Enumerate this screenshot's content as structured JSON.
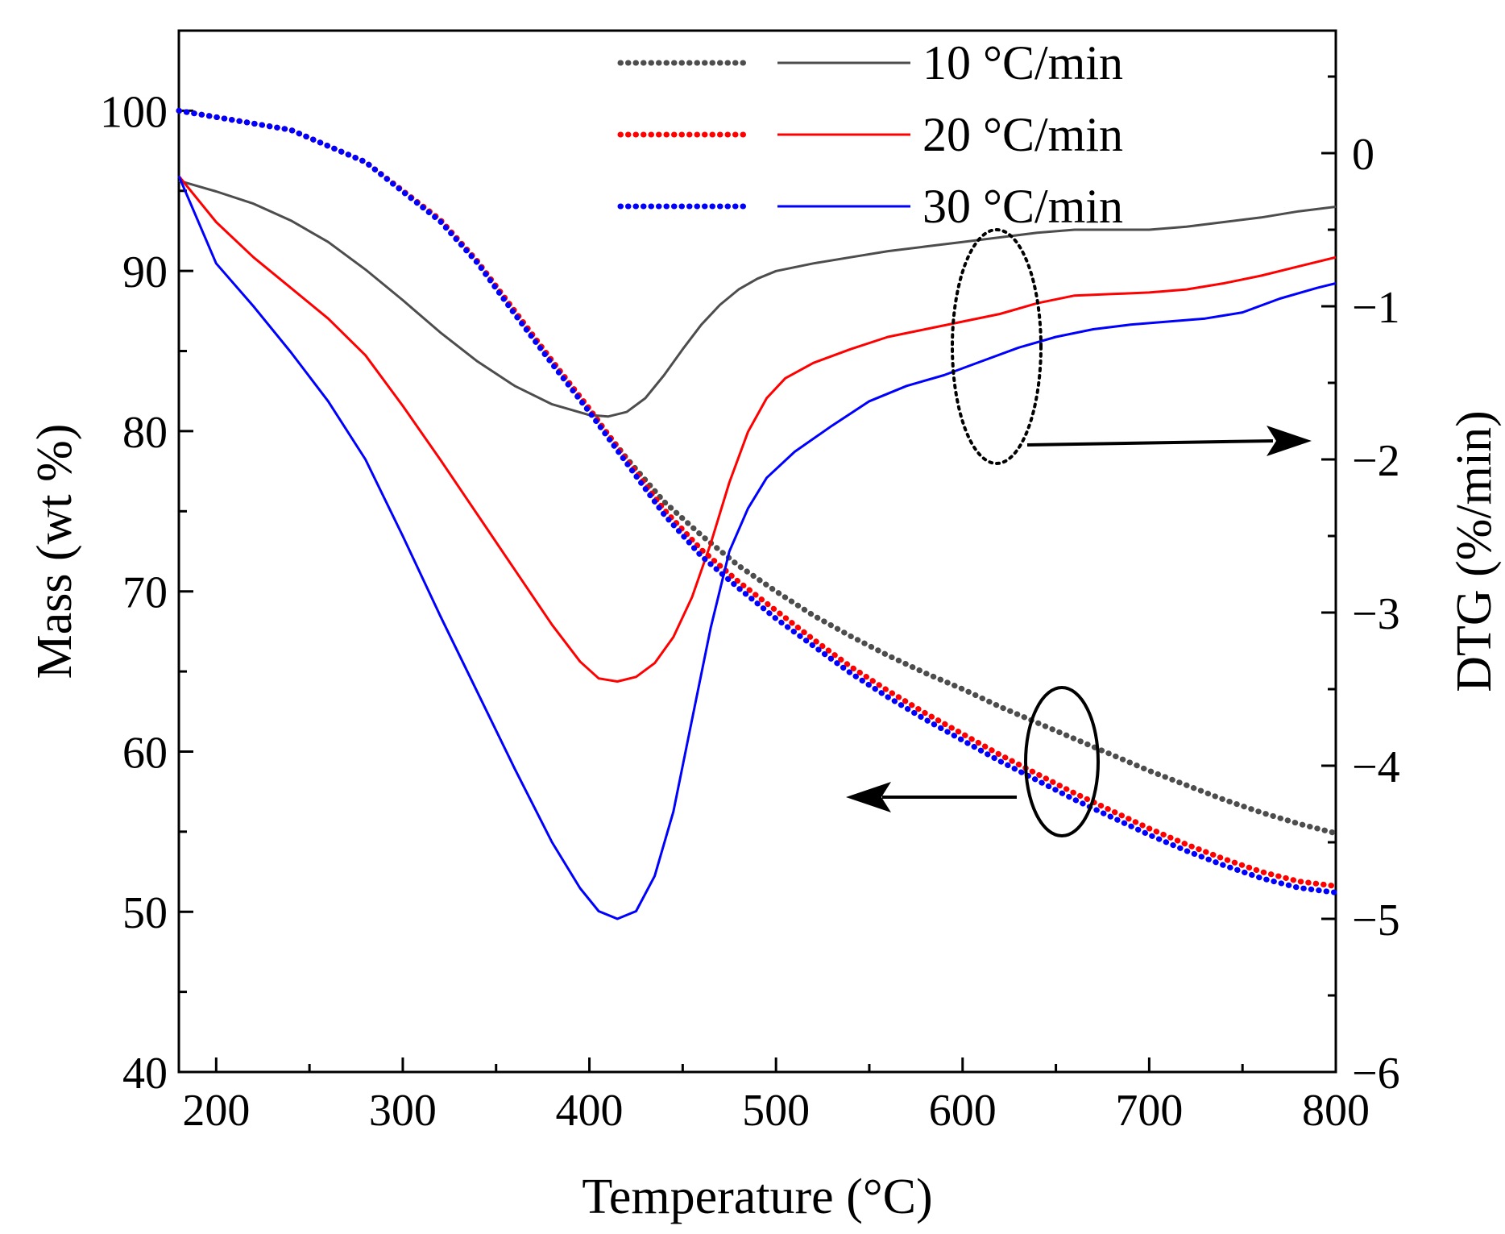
{
  "chart_data": {
    "type": "line",
    "title": "",
    "xlabel": "Temperature (°C)",
    "ylabel_left": "Mass (wt %)",
    "ylabel_right": "DTG (%/min)",
    "xlim": [
      180,
      800
    ],
    "ylim_left": [
      40,
      105
    ],
    "ylim_right": [
      -6,
      0.8
    ],
    "x_ticks": [
      "200",
      "300",
      "400",
      "500",
      "600",
      "700",
      "800"
    ],
    "y_left_ticks": [
      "40",
      "50",
      "60",
      "70",
      "80",
      "90",
      "100"
    ],
    "y_right_ticks": [
      "0",
      "−1",
      "−2",
      "−3",
      "−4",
      "−5",
      "−6"
    ],
    "grid": false,
    "legend_position": "top-right",
    "series": [
      {
        "name": "10 °C/min",
        "color": "#4d4d4d",
        "tg": [
          [
            180,
            100
          ],
          [
            200,
            99.6
          ],
          [
            240,
            98.8
          ],
          [
            280,
            96.8
          ],
          [
            320,
            93.2
          ],
          [
            340,
            90.6
          ],
          [
            360,
            87.4
          ],
          [
            380,
            84.3
          ],
          [
            400,
            81.3
          ],
          [
            420,
            78.3
          ],
          [
            440,
            75.6
          ],
          [
            460,
            73.5
          ],
          [
            480,
            71.6
          ],
          [
            500,
            70.0
          ],
          [
            520,
            68.5
          ],
          [
            540,
            67.2
          ],
          [
            560,
            66.0
          ],
          [
            580,
            64.9
          ],
          [
            600,
            63.9
          ],
          [
            620,
            62.8
          ],
          [
            640,
            61.8
          ],
          [
            660,
            60.8
          ],
          [
            680,
            59.8
          ],
          [
            700,
            58.8
          ],
          [
            720,
            57.9
          ],
          [
            740,
            57.0
          ],
          [
            760,
            56.2
          ],
          [
            780,
            55.5
          ],
          [
            800,
            54.9
          ]
        ],
        "dtg": [
          [
            180,
            -0.18
          ],
          [
            200,
            -0.25
          ],
          [
            220,
            -0.33
          ],
          [
            240,
            -0.44
          ],
          [
            260,
            -0.58
          ],
          [
            280,
            -0.76
          ],
          [
            300,
            -0.96
          ],
          [
            320,
            -1.17
          ],
          [
            340,
            -1.36
          ],
          [
            360,
            -1.52
          ],
          [
            380,
            -1.64
          ],
          [
            400,
            -1.71
          ],
          [
            410,
            -1.72
          ],
          [
            420,
            -1.69
          ],
          [
            430,
            -1.6
          ],
          [
            440,
            -1.45
          ],
          [
            450,
            -1.28
          ],
          [
            460,
            -1.12
          ],
          [
            470,
            -0.99
          ],
          [
            480,
            -0.89
          ],
          [
            490,
            -0.82
          ],
          [
            500,
            -0.77
          ],
          [
            520,
            -0.72
          ],
          [
            540,
            -0.68
          ],
          [
            560,
            -0.64
          ],
          [
            580,
            -0.61
          ],
          [
            600,
            -0.58
          ],
          [
            620,
            -0.55
          ],
          [
            640,
            -0.52
          ],
          [
            660,
            -0.5
          ],
          [
            680,
            -0.5
          ],
          [
            700,
            -0.5
          ],
          [
            720,
            -0.48
          ],
          [
            740,
            -0.45
          ],
          [
            760,
            -0.42
          ],
          [
            780,
            -0.38
          ],
          [
            800,
            -0.35
          ]
        ]
      },
      {
        "name": "20 °C/min",
        "color": "#ff0000",
        "tg": [
          [
            180,
            100
          ],
          [
            200,
            99.6
          ],
          [
            240,
            98.8
          ],
          [
            280,
            96.8
          ],
          [
            320,
            93.2
          ],
          [
            340,
            90.6
          ],
          [
            360,
            87.5
          ],
          [
            380,
            84.4
          ],
          [
            400,
            81.4
          ],
          [
            420,
            78.2
          ],
          [
            440,
            75.1
          ],
          [
            460,
            72.6
          ],
          [
            480,
            70.6
          ],
          [
            500,
            68.8
          ],
          [
            520,
            67.0
          ],
          [
            540,
            65.3
          ],
          [
            560,
            63.8
          ],
          [
            580,
            62.4
          ],
          [
            600,
            61.1
          ],
          [
            620,
            59.8
          ],
          [
            640,
            58.6
          ],
          [
            660,
            57.4
          ],
          [
            680,
            56.3
          ],
          [
            700,
            55.2
          ],
          [
            720,
            54.2
          ],
          [
            740,
            53.3
          ],
          [
            760,
            52.5
          ],
          [
            780,
            51.9
          ],
          [
            800,
            51.6
          ]
        ],
        "dtg": [
          [
            180,
            -0.15
          ],
          [
            200,
            -0.45
          ],
          [
            220,
            -0.68
          ],
          [
            240,
            -0.88
          ],
          [
            260,
            -1.08
          ],
          [
            280,
            -1.32
          ],
          [
            300,
            -1.65
          ],
          [
            320,
            -2.0
          ],
          [
            340,
            -2.36
          ],
          [
            360,
            -2.72
          ],
          [
            380,
            -3.08
          ],
          [
            395,
            -3.32
          ],
          [
            405,
            -3.43
          ],
          [
            415,
            -3.45
          ],
          [
            425,
            -3.42
          ],
          [
            435,
            -3.33
          ],
          [
            445,
            -3.16
          ],
          [
            455,
            -2.9
          ],
          [
            465,
            -2.55
          ],
          [
            475,
            -2.15
          ],
          [
            485,
            -1.82
          ],
          [
            495,
            -1.6
          ],
          [
            505,
            -1.47
          ],
          [
            520,
            -1.37
          ],
          [
            540,
            -1.28
          ],
          [
            560,
            -1.2
          ],
          [
            580,
            -1.15
          ],
          [
            600,
            -1.1
          ],
          [
            620,
            -1.05
          ],
          [
            640,
            -0.98
          ],
          [
            660,
            -0.93
          ],
          [
            680,
            -0.92
          ],
          [
            700,
            -0.91
          ],
          [
            720,
            -0.89
          ],
          [
            740,
            -0.85
          ],
          [
            760,
            -0.8
          ],
          [
            780,
            -0.74
          ],
          [
            800,
            -0.68
          ]
        ]
      },
      {
        "name": "30 °C/min",
        "color": "#0000ff",
        "tg": [
          [
            180,
            100
          ],
          [
            200,
            99.6
          ],
          [
            240,
            98.8
          ],
          [
            280,
            96.8
          ],
          [
            320,
            93.1
          ],
          [
            340,
            90.5
          ],
          [
            360,
            87.3
          ],
          [
            380,
            84.2
          ],
          [
            400,
            81.2
          ],
          [
            420,
            78.0
          ],
          [
            440,
            74.8
          ],
          [
            460,
            72.2
          ],
          [
            480,
            70.2
          ],
          [
            500,
            68.3
          ],
          [
            520,
            66.6
          ],
          [
            540,
            64.9
          ],
          [
            560,
            63.4
          ],
          [
            580,
            62.0
          ],
          [
            600,
            60.7
          ],
          [
            620,
            59.4
          ],
          [
            640,
            58.2
          ],
          [
            660,
            57.0
          ],
          [
            680,
            55.9
          ],
          [
            700,
            54.8
          ],
          [
            720,
            53.8
          ],
          [
            740,
            52.9
          ],
          [
            760,
            52.1
          ],
          [
            780,
            51.5
          ],
          [
            800,
            51.2
          ]
        ],
        "dtg": [
          [
            180,
            -0.15
          ],
          [
            200,
            -0.72
          ],
          [
            220,
            -1.0
          ],
          [
            240,
            -1.3
          ],
          [
            260,
            -1.62
          ],
          [
            280,
            -2.0
          ],
          [
            300,
            -2.5
          ],
          [
            320,
            -3.02
          ],
          [
            340,
            -3.52
          ],
          [
            360,
            -4.02
          ],
          [
            380,
            -4.5
          ],
          [
            395,
            -4.8
          ],
          [
            405,
            -4.95
          ],
          [
            415,
            -5.0
          ],
          [
            425,
            -4.95
          ],
          [
            435,
            -4.72
          ],
          [
            445,
            -4.3
          ],
          [
            455,
            -3.7
          ],
          [
            465,
            -3.1
          ],
          [
            475,
            -2.6
          ],
          [
            485,
            -2.32
          ],
          [
            495,
            -2.12
          ],
          [
            510,
            -1.95
          ],
          [
            530,
            -1.78
          ],
          [
            550,
            -1.62
          ],
          [
            570,
            -1.52
          ],
          [
            590,
            -1.45
          ],
          [
            610,
            -1.36
          ],
          [
            630,
            -1.27
          ],
          [
            650,
            -1.2
          ],
          [
            670,
            -1.15
          ],
          [
            690,
            -1.12
          ],
          [
            710,
            -1.1
          ],
          [
            730,
            -1.08
          ],
          [
            750,
            -1.04
          ],
          [
            770,
            -0.95
          ],
          [
            790,
            -0.88
          ],
          [
            800,
            -0.85
          ]
        ]
      }
    ],
    "annotations": [
      {
        "target": "DTG curves",
        "axis": "right"
      },
      {
        "target": "mass curves",
        "axis": "left"
      }
    ]
  }
}
